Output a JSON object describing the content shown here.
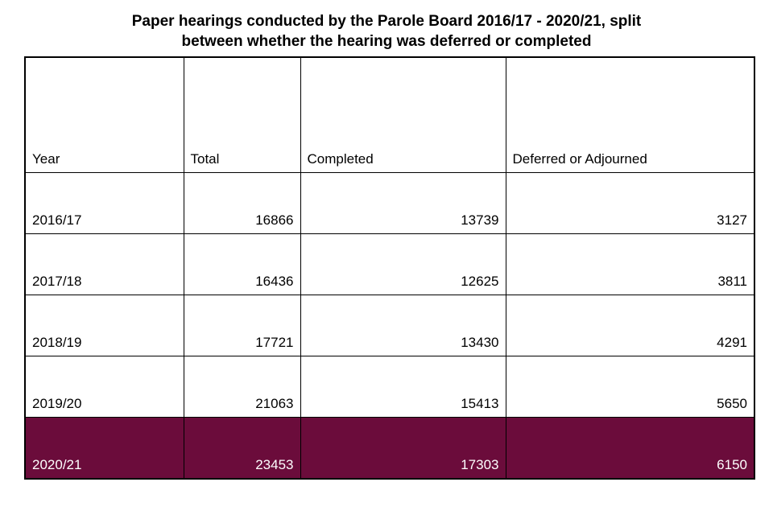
{
  "title": {
    "line1": "Paper hearings conducted by the Parole Board 2016/17 - 2020/21, split",
    "line2": "between whether the hearing was deferred or completed"
  },
  "table": {
    "headers": [
      "Year",
      "Total",
      "Completed",
      "Deferred or Adjourned"
    ],
    "rows": [
      {
        "year": "2016/17",
        "total": "16866",
        "completed": "13739",
        "deferred": "3127"
      },
      {
        "year": "2017/18",
        "total": "16436",
        "completed": "12625",
        "deferred": "3811"
      },
      {
        "year": "2018/19",
        "total": "17721",
        "completed": "13430",
        "deferred": "4291"
      },
      {
        "year": "2019/20",
        "total": "21063",
        "completed": "15413",
        "deferred": "5650"
      },
      {
        "year": "2020/21",
        "total": "23453",
        "completed": "17303",
        "deferred": "6150"
      }
    ],
    "highlighted_row": "2020/21",
    "highlight_color": "#6b0c3b",
    "highlight_text_color": "#ffffff"
  },
  "chart_data": {
    "type": "table",
    "title": "Paper hearings conducted by the Parole Board 2016/17 - 2020/21, split between whether the hearing was deferred or completed",
    "columns": [
      "Year",
      "Total",
      "Completed",
      "Deferred or Adjourned"
    ],
    "rows": [
      [
        "2016/17",
        16866,
        13739,
        3127
      ],
      [
        "2017/18",
        16436,
        12625,
        3811
      ],
      [
        "2018/19",
        17721,
        13430,
        4291
      ],
      [
        "2019/20",
        21063,
        15413,
        5650
      ],
      [
        "2020/21",
        23453,
        17303,
        6150
      ]
    ],
    "highlighted_row": "2020/21"
  }
}
